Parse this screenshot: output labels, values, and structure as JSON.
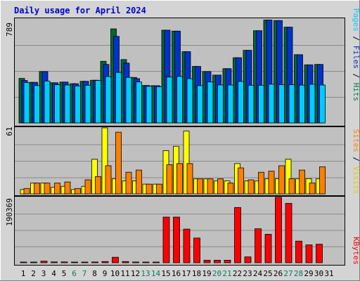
{
  "chart_data": [
    {
      "type": "bar",
      "title": "Daily usage for April 2024",
      "categories": [
        "1",
        "2",
        "3",
        "4",
        "5",
        "6",
        "7",
        "8",
        "9",
        "10",
        "11",
        "12",
        "13",
        "14",
        "15",
        "16",
        "17",
        "18",
        "19",
        "20",
        "21",
        "22",
        "23",
        "24",
        "25",
        "26",
        "27",
        "28",
        "29",
        "30",
        "31"
      ],
      "weekend_days": [
        6,
        7,
        13,
        14,
        20,
        21,
        27,
        28
      ],
      "ymax_label": "789",
      "ylim": [
        0,
        789
      ],
      "legend_words": [
        "Pages",
        "Files",
        "Hits"
      ],
      "series": [
        {
          "name": "Hits",
          "color": "#006633",
          "values": [
            338,
            308,
            390,
            305,
            310,
            298,
            316,
            324,
            468,
            714,
            481,
            345,
            284,
            283,
            704,
            697,
            541,
            429,
            390,
            363,
            412,
            495,
            551,
            700,
            781,
            777,
            727,
            518,
            441,
            444,
            null
          ]
        },
        {
          "name": "Files",
          "color": "#0033CC",
          "values": [
            322,
            308,
            390,
            305,
            310,
            298,
            316,
            324,
            444,
            657,
            454,
            336,
            284,
            283,
            704,
            697,
            541,
            429,
            390,
            363,
            412,
            495,
            551,
            700,
            781,
            777,
            727,
            518,
            441,
            444,
            null
          ]
        },
        {
          "name": "Pages",
          "color": "#00CCFF",
          "values": [
            306,
            284,
            318,
            290,
            288,
            281,
            286,
            322,
            352,
            383,
            346,
            311,
            278,
            275,
            348,
            353,
            336,
            283,
            311,
            288,
            288,
            315,
            286,
            286,
            294,
            290,
            290,
            287,
            293,
            288,
            null
          ]
        }
      ]
    },
    {
      "type": "bar",
      "categories": [
        "1",
        "2",
        "3",
        "4",
        "5",
        "6",
        "7",
        "8",
        "9",
        "10",
        "11",
        "12",
        "13",
        "14",
        "15",
        "16",
        "17",
        "18",
        "19",
        "20",
        "21",
        "22",
        "23",
        "24",
        "25",
        "26",
        "27",
        "28",
        "29",
        "30",
        "31"
      ],
      "ymax_label": "61",
      "ylim": [
        0,
        61
      ],
      "legend_words": [
        "Sites",
        "Visits"
      ],
      "series": [
        {
          "name": "Visits",
          "color": "#FFFF00",
          "values": [
            4,
            10,
            10,
            6,
            7,
            4,
            7,
            32,
            61,
            14,
            12,
            12,
            9,
            9,
            40,
            44,
            58,
            14,
            14,
            12,
            12,
            28,
            12,
            12,
            14,
            14,
            32,
            14,
            14,
            14,
            null
          ]
        },
        {
          "name": "Sites",
          "color": "#FF8000",
          "values": [
            5,
            10,
            10,
            10,
            11,
            5,
            13,
            16,
            26,
            57,
            20,
            22,
            9,
            9,
            27,
            28,
            28,
            14,
            14,
            14,
            10,
            24,
            13,
            20,
            21,
            26,
            14,
            22,
            10,
            25,
            null
          ]
        }
      ]
    },
    {
      "type": "bar",
      "categories": [
        "1",
        "2",
        "3",
        "4",
        "5",
        "6",
        "7",
        "8",
        "9",
        "10",
        "11",
        "12",
        "13",
        "14",
        "15",
        "16",
        "17",
        "18",
        "19",
        "20",
        "21",
        "22",
        "23",
        "24",
        "25",
        "26",
        "27",
        "28",
        "29",
        "30",
        "31"
      ],
      "ymax_label": "190369",
      "ylim": [
        0,
        190369
      ],
      "legend_words": [
        "KBytes"
      ],
      "series": [
        {
          "name": "KBytes",
          "color": "#FF0000",
          "values": [
            1800,
            1800,
            4600,
            2400,
            2400,
            1500,
            1500,
            2200,
            3500,
            16000,
            3500,
            2200,
            1800,
            1800,
            133000,
            133000,
            98000,
            72000,
            7400,
            7400,
            7400,
            161000,
            17000,
            99000,
            83000,
            190369,
            173000,
            63000,
            52000,
            54000,
            null
          ]
        }
      ]
    }
  ]
}
